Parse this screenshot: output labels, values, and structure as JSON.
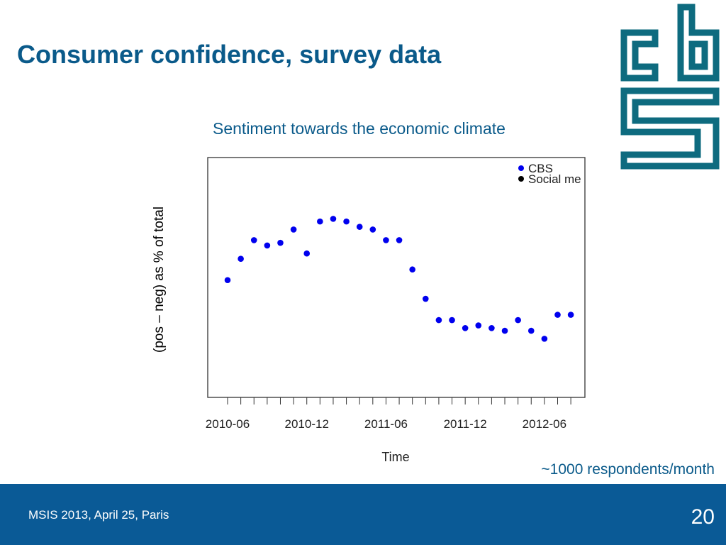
{
  "slide": {
    "title": "Consumer confidence, survey data",
    "footnote": "~1000 respondents/month",
    "footer_left": "MSIS 2013, April 25, Paris",
    "page_number": "20"
  },
  "colors": {
    "title": "#0a5a8a",
    "footer_bg": "#0a5a96",
    "logo": "#0e6b7f",
    "series_cbs": "#0000ee",
    "series_social": "#000000"
  },
  "logo": {
    "name": "cbs-logo"
  },
  "chart_data": {
    "type": "scatter",
    "title": "Sentiment towards the economic climate",
    "xlabel": "Time",
    "ylabel": "(pos – neg) as % of total",
    "x_ticks": [
      "2010-06",
      "2010-12",
      "2011-06",
      "2011-12",
      "2012-06"
    ],
    "x_minor_ticks": [
      "2010-06",
      "2010-07",
      "2010-08",
      "2010-09",
      "2010-10",
      "2010-11",
      "2010-12",
      "2011-01",
      "2011-02",
      "2011-03",
      "2011-04",
      "2011-05",
      "2011-06",
      "2011-07",
      "2011-08",
      "2011-09",
      "2011-10",
      "2011-11",
      "2011-12",
      "2012-01",
      "2012-02",
      "2012-03",
      "2012-04",
      "2012-05",
      "2012-06",
      "2012-07",
      "2012-08"
    ],
    "y_ticks_shown": false,
    "legend": {
      "placement": "top-right",
      "entries": [
        "CBS",
        "Social me"
      ]
    },
    "series": [
      {
        "name": "CBS",
        "color": "#0000ee",
        "x": [
          "2010-06",
          "2010-07",
          "2010-08",
          "2010-09",
          "2010-10",
          "2010-11",
          "2010-12",
          "2011-01",
          "2011-02",
          "2011-03",
          "2011-04",
          "2011-05",
          "2011-06",
          "2011-07",
          "2011-08",
          "2011-09",
          "2011-10",
          "2011-11",
          "2011-12",
          "2012-01",
          "2012-02",
          "2012-03",
          "2012-04",
          "2012-05",
          "2012-06",
          "2012-07",
          "2012-08"
        ],
        "values": [
          -16,
          -8,
          -1,
          -3,
          -2,
          3,
          -6,
          6,
          7,
          6,
          4,
          3,
          -1,
          -1,
          -12,
          -23,
          -31,
          -31,
          -34,
          -33,
          -34,
          -35,
          -31,
          -35,
          -38,
          -29,
          -29
        ]
      },
      {
        "name": "Social me",
        "color": "#000000",
        "x": [],
        "values": []
      }
    ],
    "ylim": [
      -60,
      30
    ]
  }
}
